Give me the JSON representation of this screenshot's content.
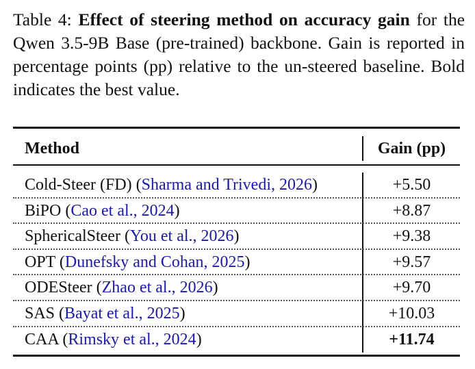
{
  "caption": {
    "label": "Table 4:",
    "title": "Effect of steering method on accuracy gain",
    "body": "for the Qwen 3.5-9B Base (pre-trained) backbone. Gain is reported in percentage points (pp) relative to the un-steered baseline. Bold indicates the best value."
  },
  "table": {
    "columns": [
      "Method",
      "Gain (pp)"
    ],
    "rows": [
      {
        "method": "Cold-Steer (FD)",
        "citation": "Sharma and Trivedi, 2026",
        "gain": "+5.50"
      },
      {
        "method": "BiPO",
        "citation": "Cao et al., 2024",
        "gain": "+8.87"
      },
      {
        "method": "SphericalSteer",
        "citation": "You et al., 2026",
        "gain": "+9.38"
      },
      {
        "method": "OPT",
        "citation": "Dunefsky and Cohan, 2025",
        "gain": "+9.57"
      },
      {
        "method": "ODESteer",
        "citation": "Zhao et al., 2026",
        "gain": "+9.70"
      },
      {
        "method": "SAS",
        "citation": "Bayat et al., 2025",
        "gain": "+10.03"
      },
      {
        "method": "CAA",
        "citation": "Rimsky et al., 2024",
        "gain": "+11.74"
      }
    ],
    "best_row_index": 6
  },
  "colors": {
    "citation": "#1a1aa6",
    "text": "#111111"
  }
}
